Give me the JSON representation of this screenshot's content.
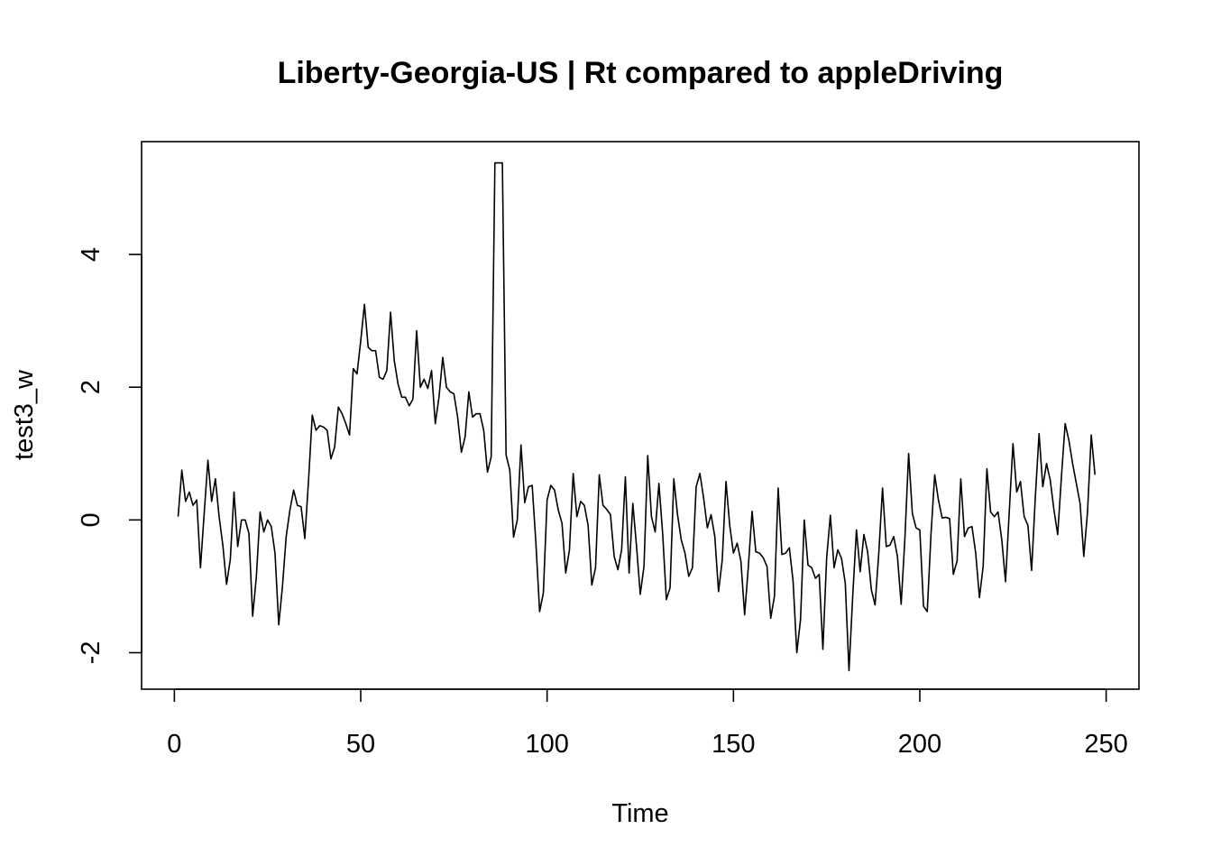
{
  "chart_data": {
    "type": "line",
    "title": "Liberty-Georgia-US | Rt compared to appleDriving",
    "xlabel": "Time",
    "ylabel": "test3_w",
    "xlim": [
      -8.8,
      258.8
    ],
    "ylim": [
      -2.55,
      5.7
    ],
    "x_ticks": [
      0,
      50,
      100,
      150,
      200,
      250
    ],
    "y_ticks": [
      -2,
      0,
      2,
      4
    ],
    "grid": false,
    "legend": "none",
    "line_color": "#000000",
    "series": [
      {
        "x_start": 1,
        "values": [
          0.05,
          0.75,
          0.28,
          0.42,
          0.22,
          0.3,
          -0.72,
          0.1,
          0.9,
          0.28,
          0.62,
          0.05,
          -0.38,
          -0.97,
          -0.6,
          0.42,
          -0.4,
          0.0,
          0.0,
          -0.2,
          -1.45,
          -0.85,
          0.12,
          -0.18,
          0.0,
          -0.1,
          -0.5,
          -1.58,
          -1.0,
          -0.25,
          0.15,
          0.45,
          0.22,
          0.2,
          -0.28,
          0.6,
          1.58,
          1.35,
          1.42,
          1.4,
          1.35,
          0.92,
          1.1,
          1.7,
          1.6,
          1.45,
          1.28,
          2.28,
          2.2,
          2.7,
          3.25,
          2.6,
          2.55,
          2.55,
          2.15,
          2.12,
          2.25,
          3.13,
          2.4,
          2.05,
          1.85,
          1.85,
          1.72,
          1.82,
          2.85,
          2.0,
          2.12,
          1.98,
          2.25,
          1.45,
          1.85,
          2.45,
          2.0,
          1.93,
          1.9,
          1.55,
          1.02,
          1.25,
          1.93,
          1.55,
          1.6,
          1.6,
          1.35,
          0.72,
          0.95,
          5.38,
          5.38,
          5.38,
          0.98,
          0.75,
          -0.26,
          0.0,
          1.13,
          0.26,
          0.5,
          0.52,
          -0.35,
          -1.38,
          -1.1,
          0.3,
          0.52,
          0.45,
          0.15,
          -0.05,
          -0.8,
          -0.45,
          0.7,
          0.05,
          0.28,
          0.22,
          -0.08,
          -0.98,
          -0.72,
          0.68,
          0.22,
          0.16,
          0.08,
          -0.55,
          -0.75,
          -0.45,
          0.65,
          -0.8,
          0.25,
          -0.4,
          -1.12,
          -0.7,
          0.97,
          0.05,
          -0.18,
          0.55,
          -0.2,
          -1.2,
          -1.02,
          0.62,
          0.08,
          -0.3,
          -0.5,
          -0.85,
          -0.72,
          0.5,
          0.7,
          0.33,
          -0.12,
          0.08,
          -0.25,
          -1.08,
          -0.6,
          0.58,
          -0.08,
          -0.5,
          -0.35,
          -0.62,
          -1.43,
          -0.7,
          0.13,
          -0.48,
          -0.5,
          -0.57,
          -0.7,
          -1.48,
          -1.15,
          0.48,
          -0.52,
          -0.5,
          -0.42,
          -0.92,
          -2.0,
          -1.5,
          0.0,
          -0.68,
          -0.72,
          -0.88,
          -0.82,
          -1.95,
          -0.58,
          0.07,
          -0.72,
          -0.45,
          -0.58,
          -0.95,
          -2.27,
          -1.15,
          -0.15,
          -0.78,
          -0.22,
          -0.48,
          -1.05,
          -1.28,
          -0.5,
          0.48,
          -0.4,
          -0.38,
          -0.25,
          -0.55,
          -1.27,
          -0.28,
          1.0,
          0.1,
          -0.12,
          -0.15,
          -1.3,
          -1.38,
          -0.22,
          0.68,
          0.3,
          0.03,
          0.04,
          0.02,
          -0.82,
          -0.62,
          0.62,
          -0.25,
          -0.12,
          -0.1,
          -0.5,
          -1.17,
          -0.7,
          0.77,
          0.12,
          0.05,
          0.12,
          -0.3,
          -0.93,
          0.12,
          1.15,
          0.42,
          0.58,
          0.05,
          -0.08,
          -0.76,
          0.35,
          1.3,
          0.5,
          0.85,
          0.6,
          0.15,
          -0.22,
          0.65,
          1.45,
          1.2,
          0.85,
          0.55,
          0.25,
          -0.55,
          0.12,
          1.28,
          0.68
        ]
      }
    ]
  }
}
